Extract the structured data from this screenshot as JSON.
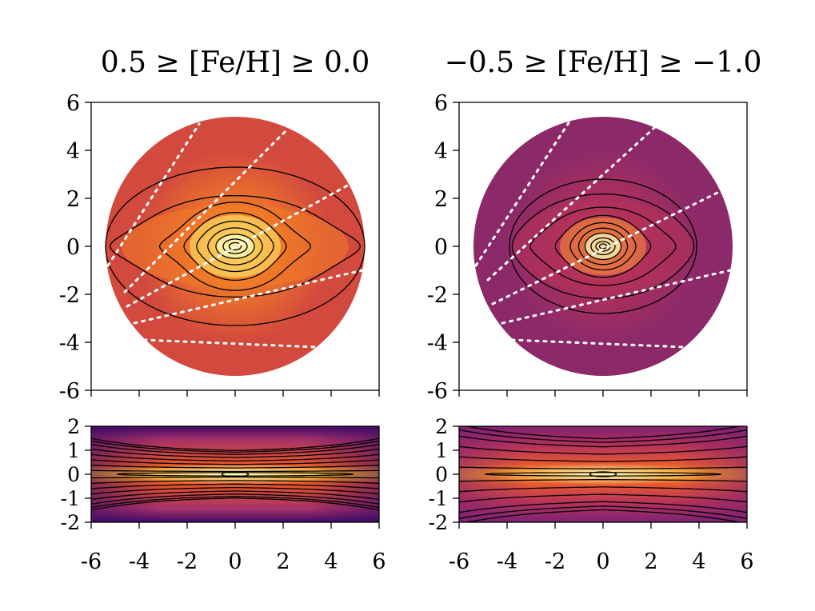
{
  "chart_data": [
    {
      "type": "heatmap",
      "title": "0.5 ≥ [Fe/H] ≥ 0.0",
      "view": "top",
      "xlim": [
        -6,
        6
      ],
      "ylim": [
        -6,
        6
      ],
      "x_ticks": [
        "-6",
        "-4",
        "-2",
        "0",
        "2",
        "4",
        "6"
      ],
      "y_ticks": [
        "-6",
        "-4",
        "-2",
        "0",
        "2",
        "4",
        "6"
      ],
      "y_ticks_axis": [
        "6",
        "4",
        "2",
        "0",
        "-2",
        "-4",
        "-6"
      ],
      "footprint_radius": 5.4,
      "colors": {
        "edge": "#d2493e",
        "mid": "#f07b27",
        "core": "#fde56a",
        "peak": "#fcfdbf"
      },
      "contour_rx": [
        5.4,
        4.5,
        2.6,
        1.9,
        1.5,
        1.1,
        0.8,
        0.5,
        0.25
      ],
      "contour_ry": [
        3.3,
        1.9,
        1.6,
        1.3,
        1.0,
        0.75,
        0.5,
        0.3,
        0.15
      ],
      "contour_lobes": [
        0,
        0.45,
        0.6,
        0.35,
        0.2,
        0.1,
        0,
        0,
        0
      ],
      "wedge_lines": [
        {
          "x": [
            -5.3,
            -1.5
          ],
          "y": [
            -0.8,
            5.1
          ]
        },
        {
          "x": [
            -4.6,
            2.2
          ],
          "y": [
            -1.9,
            4.9
          ]
        },
        {
          "x": [
            -4.5,
            4.8
          ],
          "y": [
            -2.5,
            2.6
          ]
        },
        {
          "x": [
            -4.2,
            5.3
          ],
          "y": [
            -3.2,
            -1.0
          ]
        },
        {
          "x": [
            -3.8,
            3.4
          ],
          "y": [
            -3.9,
            -4.2
          ]
        }
      ]
    },
    {
      "type": "heatmap",
      "title": "−0.5 ≥ [Fe/H] ≥ −1.0",
      "view": "top",
      "xlim": [
        -6,
        6
      ],
      "ylim": [
        -6,
        6
      ],
      "x_ticks": [
        "-6",
        "-4",
        "-2",
        "0",
        "2",
        "4",
        "6"
      ],
      "y_ticks": [
        "-6",
        "-4",
        "-2",
        "0",
        "2",
        "4",
        "6"
      ],
      "y_ticks_axis": [
        "6",
        "4",
        "2",
        "0",
        "-2",
        "-4",
        "-6"
      ],
      "footprint_radius": 5.4,
      "colors": {
        "edge": "#8c2a69",
        "mid": "#b2325a",
        "core": "#f4893b",
        "peak": "#fcfdbf"
      },
      "contour_rx": [
        3.9,
        3.6,
        2.7,
        1.8,
        1.3,
        1.0,
        0.75,
        0.5,
        0.3,
        0.15
      ],
      "contour_ry": [
        2.8,
        2.1,
        1.5,
        1.2,
        0.95,
        0.75,
        0.55,
        0.35,
        0.2,
        0.1
      ],
      "contour_lobes": [
        0,
        0.15,
        0.35,
        0.3,
        0.15,
        0.05,
        0,
        0,
        0,
        0
      ],
      "wedge_lines": [
        {
          "x": [
            -5.3,
            -1.4
          ],
          "y": [
            -0.8,
            5.2
          ]
        },
        {
          "x": [
            -4.8,
            2.2
          ],
          "y": [
            -1.4,
            5.0
          ]
        },
        {
          "x": [
            -4.6,
            5.1
          ],
          "y": [
            -2.4,
            2.4
          ]
        },
        {
          "x": [
            -4.2,
            5.3
          ],
          "y": [
            -3.2,
            -1.0
          ]
        },
        {
          "x": [
            -3.8,
            3.4
          ],
          "y": [
            -3.9,
            -4.2
          ]
        }
      ]
    },
    {
      "type": "heatmap",
      "title": "",
      "view": "side",
      "xlim": [
        -6,
        6
      ],
      "ylim": [
        -2,
        2
      ],
      "x_ticks": [
        "-6",
        "-4",
        "-2",
        "0",
        "2",
        "4",
        "6"
      ],
      "y_ticks_axis": [
        "2",
        "1",
        "0",
        "-1",
        "-2"
      ],
      "colors": {
        "outer": "#3d0965",
        "edge": "#a3306a",
        "mid": "#e8552c",
        "core": "#fcae28",
        "peak": "#fcfdbf"
      },
      "thickness_power": 0.6,
      "contour_levels": [
        0.95,
        0.8,
        0.65,
        0.5,
        0.35,
        0.22,
        0.12,
        0.05
      ]
    },
    {
      "type": "heatmap",
      "title": "",
      "view": "side",
      "xlim": [
        -6,
        6
      ],
      "ylim": [
        -2,
        2
      ],
      "x_ticks": [
        "-6",
        "-4",
        "-2",
        "0",
        "2",
        "4",
        "6"
      ],
      "y_ticks_axis": [
        "2",
        "1",
        "0",
        "-1",
        "-2"
      ],
      "colors": {
        "outer": "#7e2272",
        "edge": "#b7335b",
        "mid": "#e95a30",
        "core": "#fa9a24",
        "peak": "#fcfdbf"
      },
      "thickness_power": 0.95,
      "contour_levels": [
        0.9,
        0.7,
        0.5,
        0.3,
        0.18,
        0.08
      ]
    }
  ]
}
